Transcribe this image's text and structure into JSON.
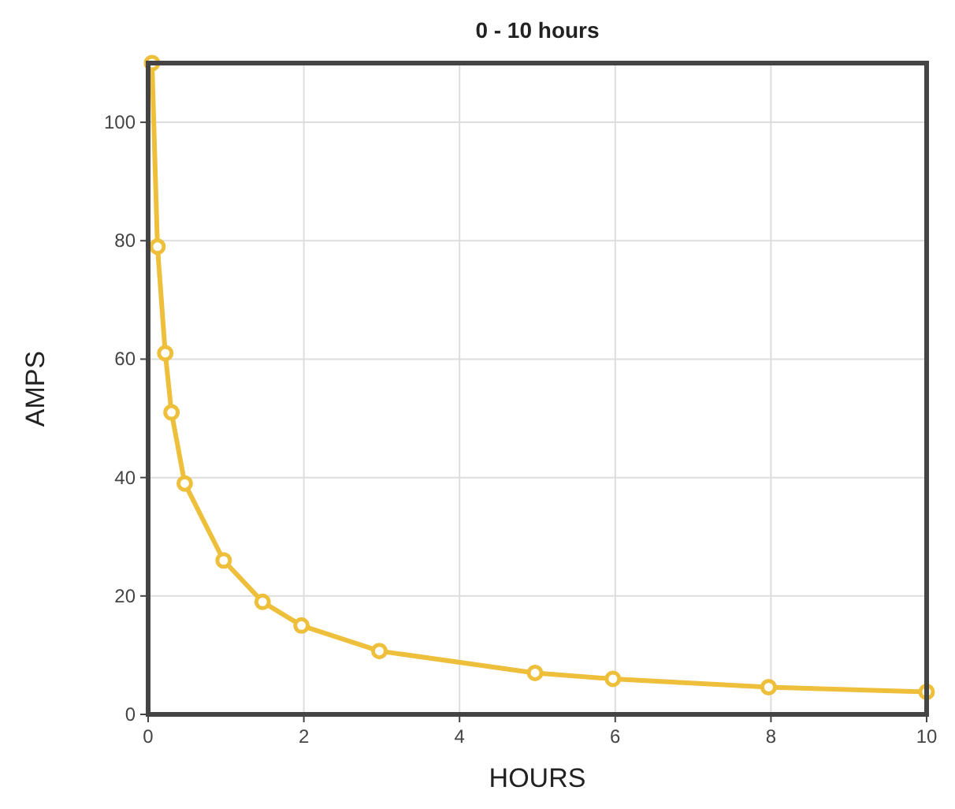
{
  "chart_data": {
    "type": "line",
    "title": "0 - 10 hours",
    "xlabel": "HOURS",
    "ylabel": "AMPS",
    "x": [
      0.05,
      0.12,
      0.22,
      0.3,
      0.47,
      0.97,
      1.47,
      1.97,
      2.97,
      4.97,
      5.97,
      7.97,
      10
    ],
    "series": [
      {
        "color": "#eebf3a",
        "values": [
          110,
          79,
          61,
          51,
          39,
          26,
          19,
          15,
          10.7,
          7,
          6,
          4.6,
          3.8
        ]
      }
    ],
    "xlim": [
      0,
      10
    ],
    "xticks": [
      0,
      2,
      4,
      6,
      8,
      10
    ],
    "ylim": [
      0,
      110
    ],
    "yticks": [
      0,
      20,
      40,
      60,
      80,
      100
    ],
    "grid": true,
    "marker": "circle",
    "line_style": "solid"
  }
}
